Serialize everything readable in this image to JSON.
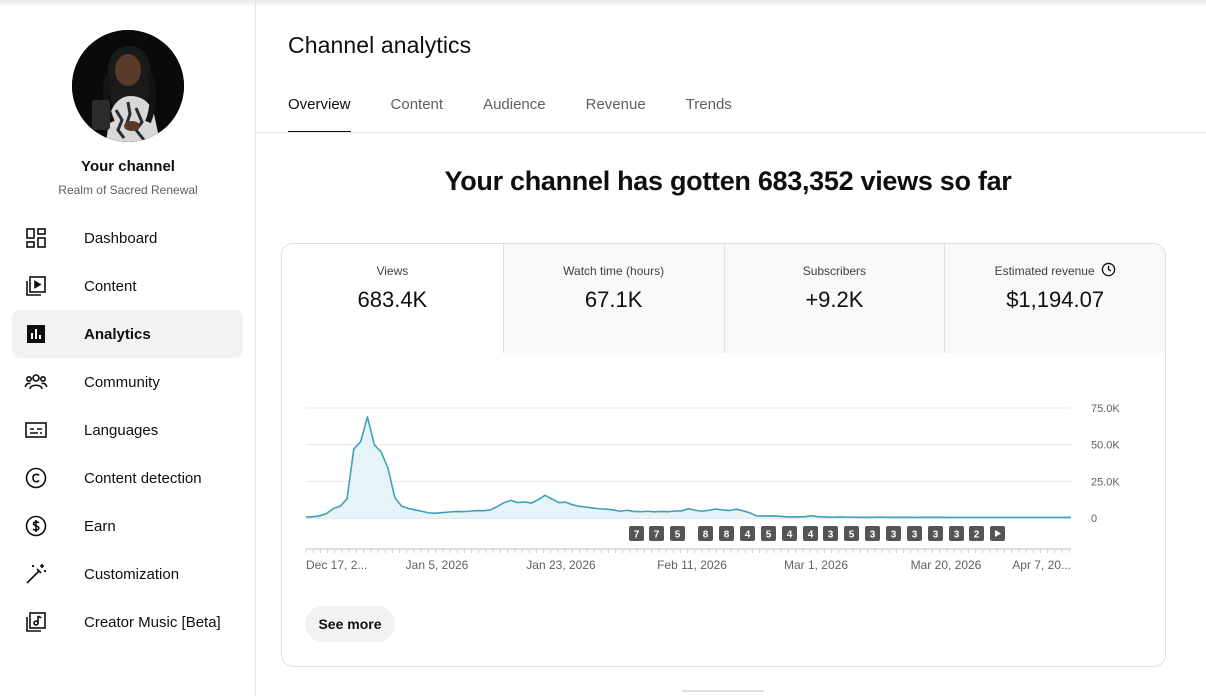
{
  "sidebar": {
    "channel_title": "Your channel",
    "channel_name": "Realm of Sacred Renewal",
    "items": [
      {
        "label": "Dashboard",
        "icon": "dashboard-icon"
      },
      {
        "label": "Content",
        "icon": "content-icon"
      },
      {
        "label": "Analytics",
        "icon": "analytics-icon",
        "active": true
      },
      {
        "label": "Community",
        "icon": "community-icon"
      },
      {
        "label": "Languages",
        "icon": "subtitles-icon"
      },
      {
        "label": "Content detection",
        "icon": "copyright-icon"
      },
      {
        "label": "Earn",
        "icon": "dollar-icon"
      },
      {
        "label": "Customization",
        "icon": "magic-wand-icon"
      },
      {
        "label": "Creator Music [Beta]",
        "icon": "music-library-icon"
      }
    ]
  },
  "header": {
    "title": "Channel analytics",
    "tabs": [
      "Overview",
      "Content",
      "Audience",
      "Revenue",
      "Trends"
    ],
    "active_tab": "Overview"
  },
  "headline": "Your channel has gotten 683,352 views so far",
  "metrics": [
    {
      "label": "Views",
      "value": "683.4K"
    },
    {
      "label": "Watch time (hours)",
      "value": "67.1K"
    },
    {
      "label": "Subscribers",
      "value": "+9.2K"
    },
    {
      "label": "Estimated revenue",
      "value": "$1,194.07",
      "icon": "clock-icon"
    }
  ],
  "chart_data": {
    "type": "area",
    "series": [
      {
        "values": [
          600,
          900,
          1500,
          3000,
          6500,
          8000,
          13000,
          47000,
          52000,
          69000,
          50000,
          45000,
          34000,
          14000,
          8000,
          6500,
          5500,
          4500,
          3500,
          3300,
          3700,
          4100,
          4500,
          4300,
          4700,
          5100,
          5000,
          5500,
          7800,
          10500,
          12000,
          10500,
          11000,
          10200,
          12500,
          15500,
          13000,
          10500,
          10800,
          9000,
          8000,
          7500,
          6800,
          6300,
          6000,
          5500,
          4600,
          5300,
          4500,
          4300,
          4600,
          4200,
          4500,
          4300,
          4700,
          4900,
          6300,
          5300,
          4600,
          5300,
          6100,
          5500,
          5100,
          6000,
          4900,
          3500,
          1400,
          1300,
          1400,
          1300,
          900,
          700,
          800,
          900,
          1500,
          900,
          700,
          600,
          700,
          600,
          600,
          500,
          500,
          500,
          600,
          500,
          500,
          500,
          500,
          400,
          500,
          500,
          500,
          500,
          400,
          400,
          400,
          400,
          400,
          400,
          400,
          400,
          400,
          400,
          400,
          400,
          400,
          400,
          400,
          400,
          400,
          400,
          400
        ]
      }
    ],
    "x_start": "2025-12-17",
    "x_end": "2026-04-08",
    "x_tick_labels": [
      "Dec 17, 2...",
      "Jan 5, 2026",
      "Jan 23, 2026",
      "Feb 11, 2026",
      "Mar 1, 2026",
      "Mar 20, 2026",
      "Apr 7, 20..."
    ],
    "y_ticks": [
      0,
      25000,
      50000,
      75000
    ],
    "y_tick_labels": [
      "0",
      "25.0K",
      "50.0K",
      "75.0K"
    ],
    "ylim": [
      0,
      75000
    ],
    "grid": true,
    "line_color": "#41a0b4",
    "fill_color": "#e6f3f8",
    "upload_markers": [
      "7",
      "7",
      "5",
      "8",
      "8",
      "4",
      "5",
      "4",
      "4",
      "3",
      "5",
      "3",
      "3",
      "3",
      "3",
      "3",
      "2"
    ],
    "upload_marker_more_icon": "play-arrow-icon"
  },
  "see_more_label": "See more"
}
